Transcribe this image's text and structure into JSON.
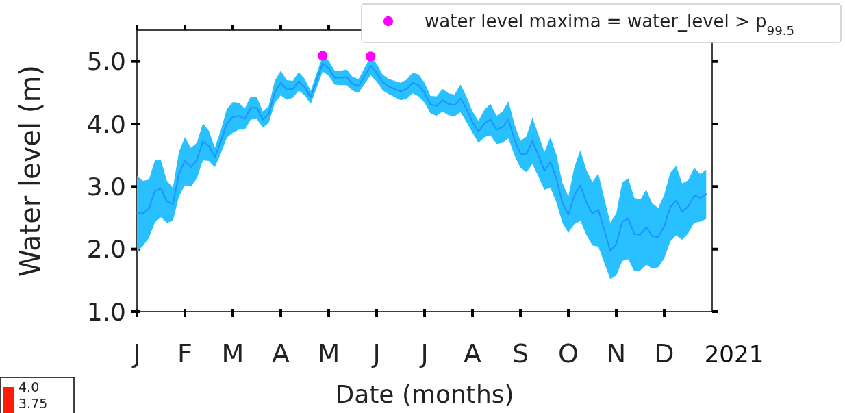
{
  "chart_data": {
    "type": "line",
    "xlabel": "Date (months)",
    "ylabel": "Water level (m)",
    "categories": [
      "J",
      null,
      null,
      null,
      null,
      null,
      null,
      null,
      "F",
      null,
      null,
      null,
      null,
      null,
      null,
      null,
      "M",
      null,
      null,
      null,
      null,
      null,
      null,
      null,
      "A",
      null,
      null,
      null,
      null,
      null,
      null,
      null,
      "M",
      null,
      null,
      null,
      null,
      null,
      null,
      null,
      "J",
      null,
      null,
      null,
      null,
      null,
      null,
      null,
      "J",
      null,
      null,
      null,
      null,
      null,
      null,
      null,
      "A",
      null,
      null,
      null,
      null,
      null,
      null,
      null,
      "S",
      null,
      null,
      null,
      null,
      null,
      null,
      null,
      "O",
      null,
      null,
      null,
      null,
      null,
      null,
      null,
      "N",
      null,
      null,
      null,
      null,
      null,
      null,
      null,
      "D",
      null,
      null,
      null,
      null,
      null,
      null,
      null
    ],
    "ylim": [
      1.0,
      5.5
    ],
    "yticks": [
      {
        "value": 1,
        "label": "1.0"
      },
      {
        "value": 2,
        "label": "2.0"
      },
      {
        "value": 3,
        "label": "3.0"
      },
      {
        "value": 4,
        "label": "4.0"
      },
      {
        "value": 5,
        "label": "5.0"
      }
    ],
    "grid": false,
    "legend": "top right",
    "marker": "none",
    "line_style": "solid",
    "annotations": [
      "2021",
      "4.0",
      "3.75"
    ],
    "series": [
      {
        "color": "#1e90ff",
        "values": [
          2.57,
          2.57,
          2.65,
          2.93,
          2.97,
          2.76,
          2.72,
          3.2,
          3.41,
          3.31,
          3.42,
          3.72,
          3.65,
          3.47,
          3.72,
          4.01,
          4.11,
          4.13,
          4.08,
          4.26,
          4.26,
          4.07,
          4.16,
          4.51,
          4.66,
          4.55,
          4.56,
          4.68,
          4.59,
          4.43,
          4.7,
          4.97,
          4.89,
          4.74,
          4.74,
          4.75,
          4.64,
          4.61,
          4.77,
          4.93,
          4.82,
          4.67,
          4.6,
          4.56,
          4.52,
          4.56,
          4.66,
          4.62,
          4.5,
          4.31,
          4.29,
          4.38,
          4.32,
          4.3,
          4.41,
          4.24,
          4.03,
          3.88,
          4.01,
          4.07,
          3.91,
          3.95,
          4.07,
          3.75,
          3.52,
          3.52,
          3.73,
          3.5,
          3.25,
          3.39,
          3.13,
          2.74,
          2.55,
          2.86,
          3.02,
          2.75,
          2.57,
          2.63,
          2.3,
          1.97,
          2.08,
          2.44,
          2.49,
          2.24,
          2.23,
          2.35,
          2.21,
          2.19,
          2.36,
          2.67,
          2.78,
          2.6,
          2.68,
          2.86,
          2.82,
          2.88
        ],
        "lower": [
          1.96,
          2.05,
          2.18,
          2.43,
          2.51,
          2.42,
          2.45,
          2.84,
          3.02,
          3.0,
          3.13,
          3.42,
          3.41,
          3.31,
          3.53,
          3.78,
          3.86,
          3.91,
          3.91,
          4.07,
          4.08,
          3.94,
          4.02,
          4.33,
          4.46,
          4.39,
          4.42,
          4.53,
          4.46,
          4.32,
          4.58,
          4.84,
          4.77,
          4.63,
          4.62,
          4.62,
          4.53,
          4.5,
          4.64,
          4.78,
          4.68,
          4.54,
          4.48,
          4.43,
          4.38,
          4.4,
          4.49,
          4.44,
          4.34,
          4.17,
          4.13,
          4.2,
          4.14,
          4.12,
          4.19,
          4.03,
          3.86,
          3.7,
          3.79,
          3.82,
          3.68,
          3.7,
          3.77,
          3.5,
          3.3,
          3.23,
          3.36,
          3.16,
          2.95,
          2.98,
          2.75,
          2.42,
          2.26,
          2.4,
          2.45,
          2.23,
          2.06,
          2.04,
          1.78,
          1.52,
          1.58,
          1.81,
          1.84,
          1.65,
          1.66,
          1.75,
          1.69,
          1.71,
          1.85,
          2.12,
          2.22,
          2.15,
          2.25,
          2.42,
          2.44,
          2.48
        ],
        "upper": [
          3.17,
          3.09,
          3.11,
          3.42,
          3.42,
          3.09,
          2.98,
          3.55,
          3.79,
          3.62,
          3.7,
          4.01,
          3.89,
          3.62,
          3.9,
          4.24,
          4.35,
          4.34,
          4.25,
          4.44,
          4.43,
          4.2,
          4.29,
          4.69,
          4.85,
          4.7,
          4.69,
          4.83,
          4.72,
          4.53,
          4.81,
          5.09,
          5.01,
          4.85,
          4.85,
          4.87,
          4.75,
          4.72,
          4.9,
          5.08,
          4.96,
          4.79,
          4.72,
          4.69,
          4.66,
          4.71,
          4.82,
          4.79,
          4.66,
          4.45,
          4.44,
          4.56,
          4.49,
          4.47,
          4.63,
          4.44,
          4.2,
          4.05,
          4.23,
          4.32,
          4.13,
          4.2,
          4.36,
          4.0,
          3.73,
          3.8,
          4.1,
          3.83,
          3.55,
          3.79,
          3.51,
          3.06,
          2.84,
          3.31,
          3.58,
          3.27,
          3.07,
          3.21,
          2.81,
          2.42,
          2.57,
          3.07,
          3.13,
          2.82,
          2.79,
          2.95,
          2.73,
          2.66,
          2.87,
          3.22,
          3.33,
          3.05,
          3.1,
          3.3,
          3.2,
          3.27
        ]
      },
      {
        "type": "scatter",
        "name": "water level maxima = water_level > p$_{99.5}$",
        "color": "#ff00ff",
        "marker": "circle",
        "values": [
          null,
          null,
          null,
          null,
          null,
          null,
          null,
          null,
          null,
          null,
          null,
          null,
          null,
          null,
          null,
          null,
          null,
          null,
          null,
          null,
          null,
          null,
          null,
          null,
          null,
          null,
          null,
          null,
          null,
          null,
          null,
          5.09,
          null,
          null,
          null,
          null,
          null,
          null,
          null,
          5.08,
          null,
          null,
          null,
          null,
          null,
          null,
          null,
          null,
          null,
          null,
          null,
          null,
          null,
          null,
          null,
          null,
          null,
          null,
          null,
          null,
          null,
          null,
          null,
          null,
          null,
          null,
          null,
          null,
          null,
          null,
          null,
          null,
          null,
          null,
          null,
          null,
          null,
          null,
          null,
          null,
          null,
          null,
          null,
          null,
          null,
          null,
          null,
          null,
          null,
          null,
          null,
          null,
          null,
          null,
          null,
          null
        ]
      }
    ]
  }
}
